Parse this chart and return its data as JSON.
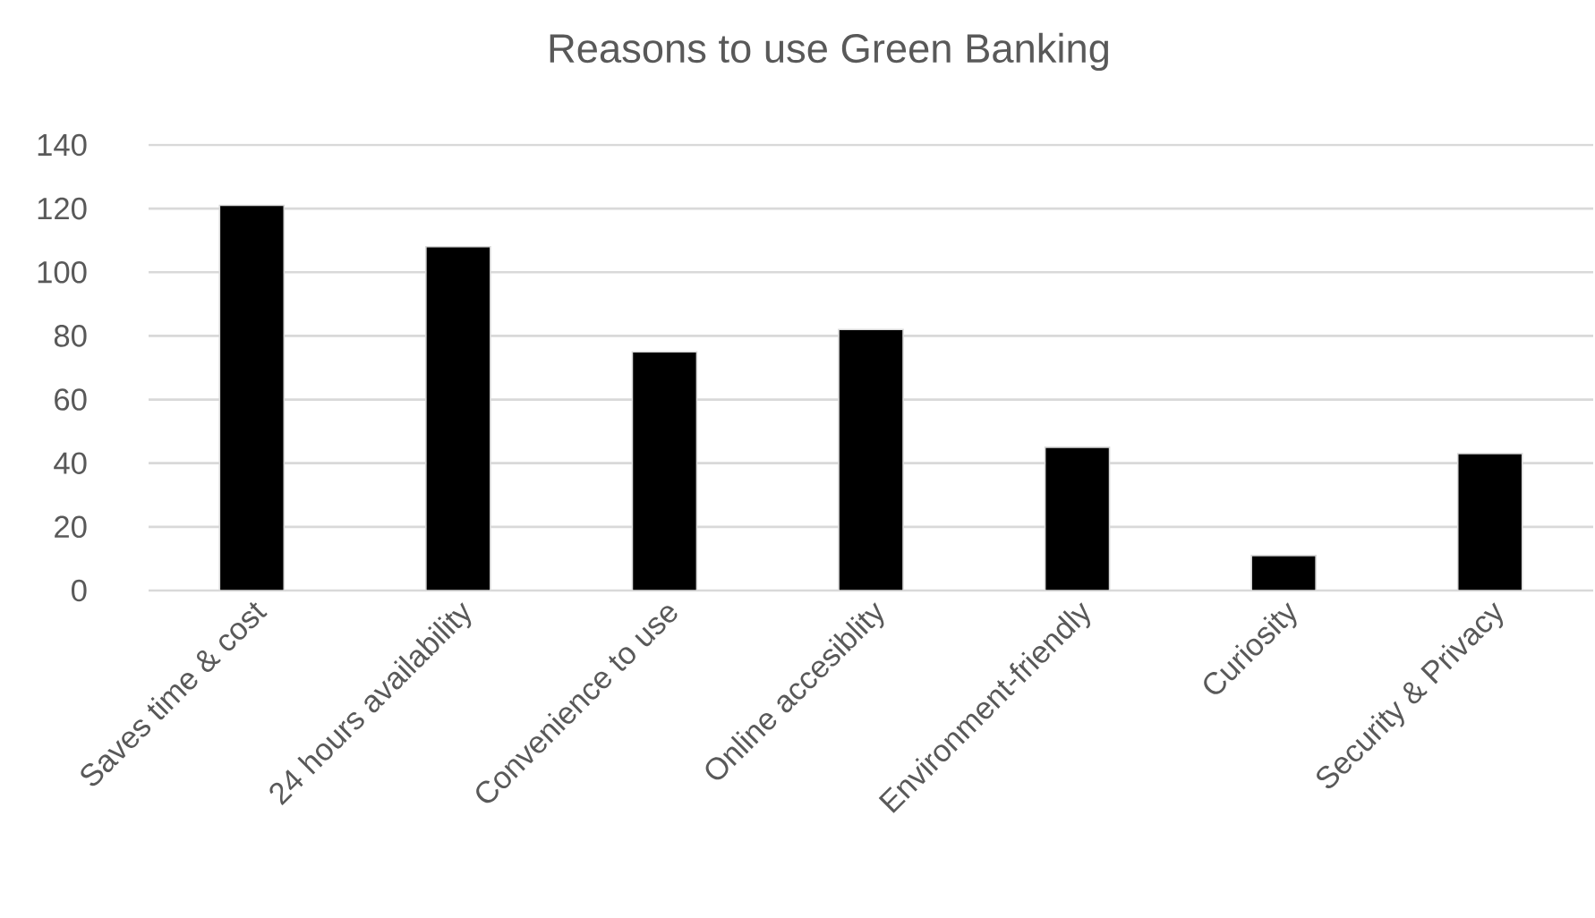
{
  "chart_data": {
    "type": "bar",
    "title": "Reasons to use Green Banking",
    "categories": [
      "Saves time & cost",
      "24 hours availability",
      "Convenience to use",
      "Online accesiblity",
      "Environment-friendly",
      "Curiosity",
      "Security & Privacy"
    ],
    "values": [
      121,
      108,
      75,
      82,
      45,
      11,
      43
    ],
    "color": "#000000",
    "ylim": [
      0,
      140
    ],
    "yticks": [
      0,
      20,
      40,
      60,
      80,
      100,
      120,
      140
    ],
    "grid": "y"
  }
}
